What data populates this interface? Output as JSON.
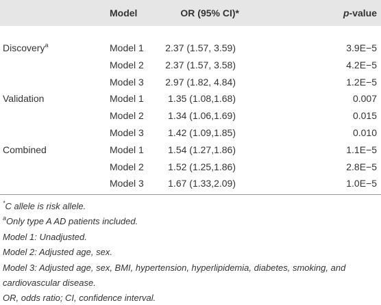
{
  "table": {
    "header": {
      "model": "Model",
      "or": "OR (95% CI)*",
      "p": {
        "italic": "p",
        "text": "-value"
      }
    },
    "groups": [
      {
        "name": "Discovery",
        "sup": "a",
        "rows": [
          [
            "Model 1",
            "2.37 (1.57, 3.59)",
            "3.9E−5"
          ],
          [
            "Model 2",
            "2.37 (1.57, 3.58)",
            "4.2E−5"
          ],
          [
            "Model 3",
            "2.97 (1.82, 4.84)",
            "1.2E−5"
          ]
        ]
      },
      {
        "name": "Validation",
        "rows": [
          [
            "Model 1",
            "1.35 (1.08,1.68)",
            "0.007"
          ],
          [
            "Model 2",
            "1.34 (1.06,1.69)",
            "0.015"
          ],
          [
            "Model 3",
            "1.42 (1.09,1.85)",
            "0.010"
          ]
        ]
      },
      {
        "name": "Combined",
        "rows": [
          [
            "Model 1",
            "1.54 (1.27,1.86)",
            "1.1E−5"
          ],
          [
            "Model 2",
            "1.52 (1.25,1.86)",
            "2.8E−5"
          ],
          [
            "Model 3",
            "1.67 (1.33,2.09)",
            "1.0E−5"
          ]
        ]
      }
    ]
  },
  "footnotes": [
    {
      "mark": "*",
      "text": "C allele is risk allele."
    },
    {
      "mark": "a",
      "text": "Only type A AD patients included."
    },
    {
      "text": "Model 1: Unadjusted."
    },
    {
      "text": "Model 2: Adjusted age, sex."
    },
    {
      "text": "Model 3: Adjusted age, sex, BMI, hypertension, hyperlipidemia, diabetes, smoking, and"
    },
    {
      "text": "cardiovascular disease."
    },
    {
      "text": "OR, odds ratio; CI, confidence interval."
    }
  ]
}
